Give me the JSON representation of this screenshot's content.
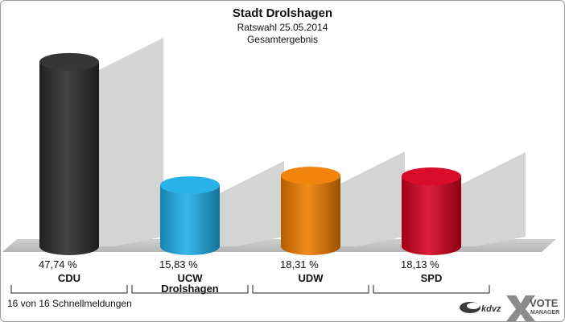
{
  "chart_data": {
    "type": "bar",
    "title": "Stadt Drolshagen",
    "subtitle_lines": [
      "Ratswahl 25.05.2014",
      "Gesamtergebnis"
    ],
    "categories": [
      {
        "lines": [
          "CDU"
        ]
      },
      {
        "lines": [
          "UCW",
          "Drolshagen"
        ]
      },
      {
        "lines": [
          "UDW"
        ]
      },
      {
        "lines": [
          "SPD"
        ]
      }
    ],
    "values": [
      47.74,
      15.83,
      18.31,
      18.13
    ],
    "value_labels": [
      "47,74 %",
      "15,83 %",
      "18,31 %",
      "18,13 %"
    ],
    "colors": [
      "#2b2b2b",
      "#1eaee8",
      "#f07d00",
      "#d7001f"
    ],
    "ylim": [
      0,
      50
    ],
    "grid": false,
    "legend": "none"
  },
  "footer": {
    "status": "16 von 16 Schnellmeldungen"
  },
  "branding": {
    "partner_logo": "kdvz",
    "vote_word": "VOTE",
    "manager_word": "MANAGER"
  }
}
